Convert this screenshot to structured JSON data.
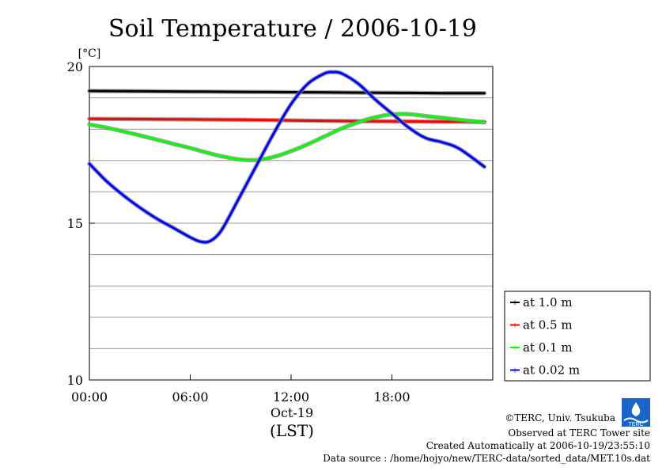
{
  "chart_data": {
    "type": "line",
    "title": "Soil Temperature / 2006-10-19",
    "ylabel": "[°C]",
    "xlabel_date": "Oct-19",
    "xlabel_tz": "(LST)",
    "x_unit": "hour of day (LST)",
    "xlim": [
      0,
      24
    ],
    "ylim": [
      10,
      20
    ],
    "x_ticks": [
      0,
      6,
      12,
      18
    ],
    "x_tick_labels": [
      "00:00",
      "06:00",
      "12:00",
      "18:00"
    ],
    "y_ticks": [
      10,
      15,
      20
    ],
    "y_tick_labels": [
      "10",
      "15",
      "20"
    ],
    "y_gridlines": [
      11,
      12,
      13,
      14,
      15,
      16,
      17,
      18,
      19,
      20
    ],
    "grid": true,
    "legend_position": "right-bottom",
    "series": [
      {
        "name": "at 1.0 m",
        "color": "#000000",
        "x": [
          0,
          3,
          6,
          9,
          12,
          15,
          18,
          21,
          23.5
        ],
        "y": [
          19.22,
          19.21,
          19.2,
          19.19,
          19.18,
          19.17,
          19.16,
          19.15,
          19.15
        ]
      },
      {
        "name": "at 0.5 m",
        "color": "#ff0000",
        "x": [
          0,
          3,
          6,
          9,
          12,
          15,
          18,
          21,
          23.5
        ],
        "y": [
          18.33,
          18.32,
          18.31,
          18.3,
          18.28,
          18.26,
          18.25,
          18.24,
          18.23
        ]
      },
      {
        "name": "at 0.1 m",
        "color": "#00ff00",
        "x": [
          0,
          1,
          2,
          3,
          4,
          5,
          6,
          7,
          8,
          9,
          10,
          11,
          12,
          13,
          14,
          15,
          16,
          17,
          18,
          19,
          20,
          21,
          22,
          23.5
        ],
        "y": [
          18.15,
          18.05,
          17.93,
          17.8,
          17.67,
          17.53,
          17.4,
          17.25,
          17.12,
          17.03,
          17.02,
          17.12,
          17.3,
          17.52,
          17.77,
          18.02,
          18.22,
          18.38,
          18.47,
          18.48,
          18.42,
          18.36,
          18.3,
          18.22
        ]
      },
      {
        "name": "at 0.02 m",
        "color": "#0000ff",
        "x": [
          0,
          1,
          2,
          3,
          4,
          5,
          6,
          6.5,
          7,
          7.5,
          8,
          9,
          10,
          11,
          12,
          13,
          14,
          14.5,
          15,
          16,
          17,
          18,
          19,
          20,
          21,
          22,
          23.5
        ],
        "y": [
          16.9,
          16.35,
          15.9,
          15.5,
          15.15,
          14.85,
          14.55,
          14.43,
          14.4,
          14.55,
          14.9,
          15.9,
          16.9,
          17.9,
          18.8,
          19.45,
          19.78,
          19.82,
          19.78,
          19.45,
          18.95,
          18.5,
          18.05,
          17.72,
          17.58,
          17.38,
          16.8
        ]
      }
    ]
  },
  "footer": {
    "copyright": "©TERC, Univ. Tsukuba",
    "observed": "Observed at TERC Tower site",
    "created": "Created Automatically at 2006-10-19/23:55:10",
    "source": "Data source : /home/hojyo/new/TERC-data/sorted_data/MET.10s.dat",
    "logo_text": "TERC"
  }
}
